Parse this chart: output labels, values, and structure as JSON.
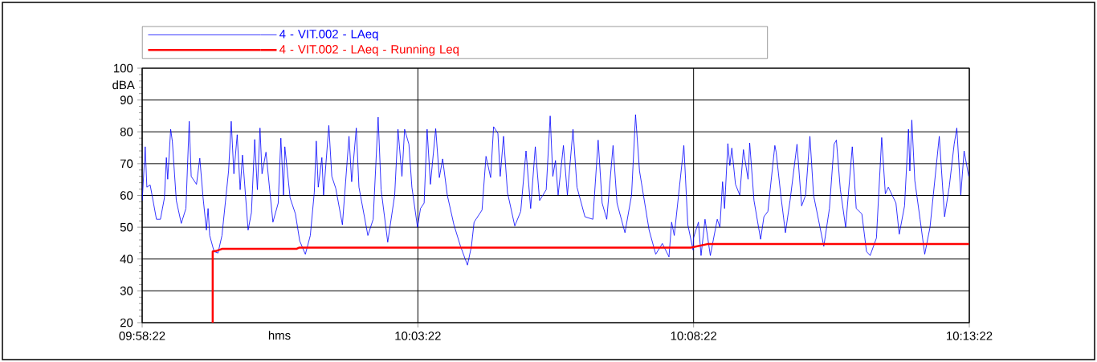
{
  "chart_data": {
    "type": "line",
    "xlabel": "hms",
    "ylabel": "dBA",
    "xlim": [
      9.972778,
      10.222778
    ],
    "xticks": [
      {
        "value": 9.972778,
        "label": "09:58:22"
      },
      {
        "value": 10.056111,
        "label": "10:03:22"
      },
      {
        "value": 10.139444,
        "label": "10:08:22"
      },
      {
        "value": 10.222778,
        "label": "10:13:22"
      }
    ],
    "ylim": [
      20,
      100
    ],
    "yticks": [
      20,
      30,
      40,
      50,
      60,
      70,
      80,
      90,
      100
    ],
    "grid": true,
    "legend": "top",
    "marker": "none",
    "line_style": "solid",
    "series": [
      {
        "name": "4 - VIT.002 - LAeq",
        "color": "#0000ff",
        "x": [
          9.9728,
          9.9737,
          9.9742,
          9.9752,
          9.9771,
          9.9783,
          9.9795,
          9.9801,
          9.9805,
          9.9814,
          9.9819,
          9.9831,
          9.9846,
          9.986,
          9.987,
          9.9876,
          9.9892,
          9.9902,
          9.9912,
          9.9922,
          9.9927,
          9.9932,
          9.9945,
          9.9957,
          9.9969,
          9.9989,
          9.9997,
          10.0005,
          10.0015,
          10.0024,
          10.0031,
          10.0048,
          10.0058,
          10.0068,
          10.0076,
          10.0084,
          10.009,
          10.0102,
          10.0123,
          10.0139,
          10.0147,
          10.0155,
          10.0159,
          10.0175,
          10.0191,
          10.0204,
          10.0221,
          10.0236,
          10.0248,
          10.0254,
          10.026,
          10.0271,
          10.0276,
          10.0292,
          10.0301,
          10.0313,
          10.0333,
          10.0353,
          10.0361,
          10.0375,
          10.0383,
          10.041,
          10.0426,
          10.0441,
          10.045,
          10.047,
          10.0491,
          10.0501,
          10.0513,
          10.0521,
          10.0534,
          10.0543,
          10.056,
          10.0569,
          10.058,
          10.0589,
          10.0599,
          10.0615,
          10.0626,
          10.0636,
          10.065,
          10.067,
          10.069,
          10.0711,
          10.0723,
          10.0731,
          10.0755,
          10.0767,
          10.0781,
          10.079,
          10.0803,
          10.081,
          10.082,
          10.0832,
          10.0854,
          10.0872,
          10.0888,
          10.0902,
          10.0916,
          10.0929,
          10.0949,
          10.0961,
          10.0969,
          10.0977,
          10.0985,
          10.1001,
          10.1013,
          10.103,
          10.1042,
          10.1066,
          10.109,
          10.1106,
          10.1118,
          10.1132,
          10.1151,
          10.1163,
          10.1187,
          10.1207,
          10.1219,
          10.1231,
          10.126,
          10.128,
          10.13,
          10.132,
          10.1328,
          10.1336,
          10.1365,
          10.1377,
          10.1393,
          10.1394,
          10.1409,
          10.1417,
          10.1429,
          10.1445,
          10.1466,
          10.1474,
          10.1482,
          10.1488,
          10.1498,
          10.1504,
          10.151,
          10.1521,
          10.1534,
          10.1545,
          10.1559,
          10.1564,
          10.1577,
          10.1597,
          10.1607,
          10.1619,
          10.164,
          10.1644,
          10.1658,
          10.1672,
          10.1686,
          10.1707,
          10.1721,
          10.1733,
          10.1746,
          10.1757,
          10.1788,
          10.1805,
          10.1819,
          10.1826,
          10.1838,
          10.1854,
          10.1874,
          10.1886,
          10.1903,
          10.1917,
          10.1928,
          10.1947,
          10.1963,
          10.1974,
          10.1983,
          10.2006,
          10.2016,
          10.2032,
          10.2044,
          10.2048,
          10.2054,
          10.2063,
          10.2079,
          10.2093,
          10.2109,
          10.2137,
          10.2153,
          10.2167,
          10.2182,
          10.219,
          10.2202,
          10.2212,
          10.2226
        ],
        "values": [
          58.4,
          75.3,
          62.6,
          63.3,
          52.5,
          52.5,
          59.2,
          71.9,
          65.1,
          80.8,
          77,
          58.4,
          51.2,
          55.9,
          83.3,
          66,
          63.5,
          71.7,
          59.2,
          49.1,
          55.9,
          47.4,
          42.4,
          41.9,
          47.4,
          67.7,
          83.3,
          66.8,
          79.1,
          61.8,
          72.7,
          49.1,
          54.6,
          77.6,
          61.8,
          81.2,
          66.8,
          73.6,
          51.6,
          57.6,
          78,
          60.1,
          75.3,
          59.2,
          54.2,
          45.7,
          41.5,
          47.4,
          60.9,
          77.1,
          62.6,
          71.9,
          60.1,
          82,
          66,
          62.2,
          50.8,
          78.6,
          64.3,
          81.2,
          62.6,
          47.4,
          52.5,
          84.6,
          61.8,
          45.3,
          60.1,
          80.8,
          66,
          80.8,
          76.1,
          62.6,
          50,
          55.9,
          57.6,
          80.8,
          63.5,
          81,
          65.6,
          71.5,
          60.1,
          50.8,
          44,
          38.1,
          44,
          51.6,
          55.4,
          72.3,
          65.6,
          81.6,
          79.5,
          66,
          78.6,
          60.9,
          50.4,
          55,
          74,
          55.9,
          75.3,
          58.4,
          61.8,
          85,
          66,
          71,
          60.1,
          75.7,
          60.1,
          80.8,
          62.6,
          53.3,
          52.5,
          77.4,
          57.6,
          52.5,
          75.7,
          57.6,
          48.3,
          60.1,
          85.4,
          67.7,
          49.1,
          41.5,
          44.9,
          40.7,
          51.6,
          47.4,
          75.7,
          50.8,
          42.8,
          46.6,
          51.6,
          41.1,
          52.5,
          41.1,
          52.5,
          50,
          64.3,
          55.9,
          76.3,
          69.4,
          74.9,
          63.5,
          60.1,
          74.4,
          65.1,
          76.5,
          58.4,
          46.2,
          53.3,
          55,
          75.7,
          73.6,
          60.1,
          48.3,
          58.4,
          76.1,
          56.7,
          60.1,
          78.6,
          60.1,
          44,
          55.9,
          76.1,
          77.4,
          61.8,
          50,
          75.3,
          55.9,
          54.2,
          42.4,
          41.1,
          46.6,
          78.2,
          60.5,
          62.6,
          57.6,
          47.8,
          56.7,
          80.8,
          67.7,
          83.7,
          64.7,
          52.5,
          41.5,
          50,
          78.6,
          53.3,
          62.6,
          76.1,
          81.2,
          60.1,
          74,
          66
        ]
      },
      {
        "name": "4 - VIT.002 - LAeq - Running Leq",
        "color": "#ff0000",
        "x": [
          9.9941,
          9.9941,
          9.9953,
          9.9969,
          10.0194,
          10.0203,
          10.1386,
          10.1436,
          10.2227
        ],
        "values": [
          20,
          42.4,
          42.6,
          43.2,
          43.2,
          43.6,
          43.6,
          44.7,
          44.7
        ]
      }
    ]
  }
}
